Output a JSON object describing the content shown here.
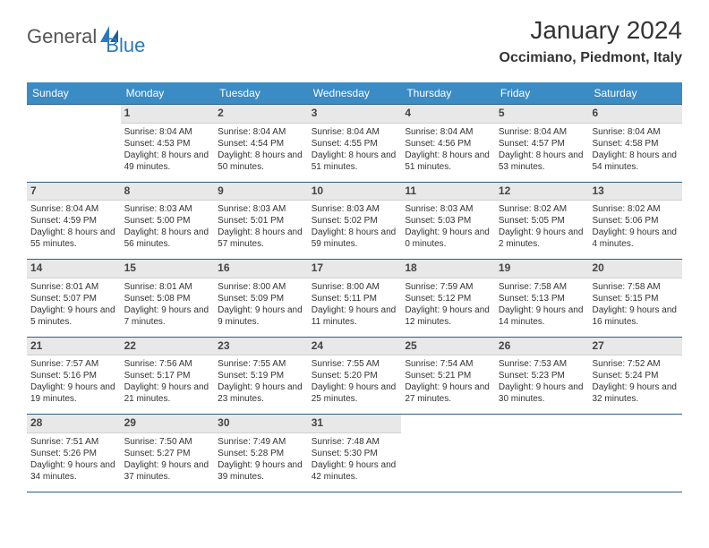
{
  "logo": {
    "part1": "General",
    "part2": "Blue"
  },
  "title": "January 2024",
  "location": "Occimiano, Piedmont, Italy",
  "colors": {
    "header_bg": "#3b8bc4",
    "header_text": "#ffffff",
    "daynum_bg": "#e8e8e8",
    "row_border": "#2a5f8a",
    "logo_accent": "#2a7ac0"
  },
  "day_names": [
    "Sunday",
    "Monday",
    "Tuesday",
    "Wednesday",
    "Thursday",
    "Friday",
    "Saturday"
  ],
  "weeks": [
    [
      {
        "n": "",
        "sr": "",
        "ss": "",
        "dl": ""
      },
      {
        "n": "1",
        "sr": "Sunrise: 8:04 AM",
        "ss": "Sunset: 4:53 PM",
        "dl": "Daylight: 8 hours and 49 minutes."
      },
      {
        "n": "2",
        "sr": "Sunrise: 8:04 AM",
        "ss": "Sunset: 4:54 PM",
        "dl": "Daylight: 8 hours and 50 minutes."
      },
      {
        "n": "3",
        "sr": "Sunrise: 8:04 AM",
        "ss": "Sunset: 4:55 PM",
        "dl": "Daylight: 8 hours and 51 minutes."
      },
      {
        "n": "4",
        "sr": "Sunrise: 8:04 AM",
        "ss": "Sunset: 4:56 PM",
        "dl": "Daylight: 8 hours and 51 minutes."
      },
      {
        "n": "5",
        "sr": "Sunrise: 8:04 AM",
        "ss": "Sunset: 4:57 PM",
        "dl": "Daylight: 8 hours and 53 minutes."
      },
      {
        "n": "6",
        "sr": "Sunrise: 8:04 AM",
        "ss": "Sunset: 4:58 PM",
        "dl": "Daylight: 8 hours and 54 minutes."
      }
    ],
    [
      {
        "n": "7",
        "sr": "Sunrise: 8:04 AM",
        "ss": "Sunset: 4:59 PM",
        "dl": "Daylight: 8 hours and 55 minutes."
      },
      {
        "n": "8",
        "sr": "Sunrise: 8:03 AM",
        "ss": "Sunset: 5:00 PM",
        "dl": "Daylight: 8 hours and 56 minutes."
      },
      {
        "n": "9",
        "sr": "Sunrise: 8:03 AM",
        "ss": "Sunset: 5:01 PM",
        "dl": "Daylight: 8 hours and 57 minutes."
      },
      {
        "n": "10",
        "sr": "Sunrise: 8:03 AM",
        "ss": "Sunset: 5:02 PM",
        "dl": "Daylight: 8 hours and 59 minutes."
      },
      {
        "n": "11",
        "sr": "Sunrise: 8:03 AM",
        "ss": "Sunset: 5:03 PM",
        "dl": "Daylight: 9 hours and 0 minutes."
      },
      {
        "n": "12",
        "sr": "Sunrise: 8:02 AM",
        "ss": "Sunset: 5:05 PM",
        "dl": "Daylight: 9 hours and 2 minutes."
      },
      {
        "n": "13",
        "sr": "Sunrise: 8:02 AM",
        "ss": "Sunset: 5:06 PM",
        "dl": "Daylight: 9 hours and 4 minutes."
      }
    ],
    [
      {
        "n": "14",
        "sr": "Sunrise: 8:01 AM",
        "ss": "Sunset: 5:07 PM",
        "dl": "Daylight: 9 hours and 5 minutes."
      },
      {
        "n": "15",
        "sr": "Sunrise: 8:01 AM",
        "ss": "Sunset: 5:08 PM",
        "dl": "Daylight: 9 hours and 7 minutes."
      },
      {
        "n": "16",
        "sr": "Sunrise: 8:00 AM",
        "ss": "Sunset: 5:09 PM",
        "dl": "Daylight: 9 hours and 9 minutes."
      },
      {
        "n": "17",
        "sr": "Sunrise: 8:00 AM",
        "ss": "Sunset: 5:11 PM",
        "dl": "Daylight: 9 hours and 11 minutes."
      },
      {
        "n": "18",
        "sr": "Sunrise: 7:59 AM",
        "ss": "Sunset: 5:12 PM",
        "dl": "Daylight: 9 hours and 12 minutes."
      },
      {
        "n": "19",
        "sr": "Sunrise: 7:58 AM",
        "ss": "Sunset: 5:13 PM",
        "dl": "Daylight: 9 hours and 14 minutes."
      },
      {
        "n": "20",
        "sr": "Sunrise: 7:58 AM",
        "ss": "Sunset: 5:15 PM",
        "dl": "Daylight: 9 hours and 16 minutes."
      }
    ],
    [
      {
        "n": "21",
        "sr": "Sunrise: 7:57 AM",
        "ss": "Sunset: 5:16 PM",
        "dl": "Daylight: 9 hours and 19 minutes."
      },
      {
        "n": "22",
        "sr": "Sunrise: 7:56 AM",
        "ss": "Sunset: 5:17 PM",
        "dl": "Daylight: 9 hours and 21 minutes."
      },
      {
        "n": "23",
        "sr": "Sunrise: 7:55 AM",
        "ss": "Sunset: 5:19 PM",
        "dl": "Daylight: 9 hours and 23 minutes."
      },
      {
        "n": "24",
        "sr": "Sunrise: 7:55 AM",
        "ss": "Sunset: 5:20 PM",
        "dl": "Daylight: 9 hours and 25 minutes."
      },
      {
        "n": "25",
        "sr": "Sunrise: 7:54 AM",
        "ss": "Sunset: 5:21 PM",
        "dl": "Daylight: 9 hours and 27 minutes."
      },
      {
        "n": "26",
        "sr": "Sunrise: 7:53 AM",
        "ss": "Sunset: 5:23 PM",
        "dl": "Daylight: 9 hours and 30 minutes."
      },
      {
        "n": "27",
        "sr": "Sunrise: 7:52 AM",
        "ss": "Sunset: 5:24 PM",
        "dl": "Daylight: 9 hours and 32 minutes."
      }
    ],
    [
      {
        "n": "28",
        "sr": "Sunrise: 7:51 AM",
        "ss": "Sunset: 5:26 PM",
        "dl": "Daylight: 9 hours and 34 minutes."
      },
      {
        "n": "29",
        "sr": "Sunrise: 7:50 AM",
        "ss": "Sunset: 5:27 PM",
        "dl": "Daylight: 9 hours and 37 minutes."
      },
      {
        "n": "30",
        "sr": "Sunrise: 7:49 AM",
        "ss": "Sunset: 5:28 PM",
        "dl": "Daylight: 9 hours and 39 minutes."
      },
      {
        "n": "31",
        "sr": "Sunrise: 7:48 AM",
        "ss": "Sunset: 5:30 PM",
        "dl": "Daylight: 9 hours and 42 minutes."
      },
      {
        "n": "",
        "sr": "",
        "ss": "",
        "dl": ""
      },
      {
        "n": "",
        "sr": "",
        "ss": "",
        "dl": ""
      },
      {
        "n": "",
        "sr": "",
        "ss": "",
        "dl": ""
      }
    ]
  ]
}
